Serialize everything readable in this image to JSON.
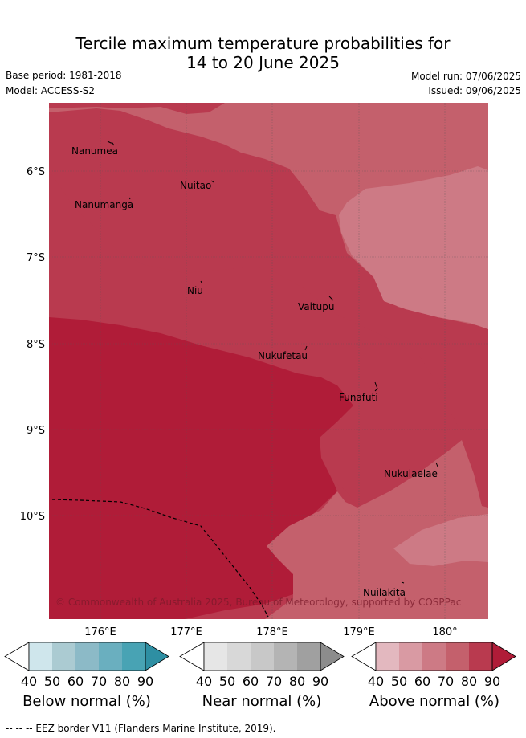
{
  "header": {
    "title_line1": "Tercile maximum temperature probabilities for",
    "title_line2": "14 to 20 June 2025",
    "base_period": "Base period: 1981-2018",
    "model": "Model: ACCESS-S2",
    "model_run": "Model run: 07/06/2025",
    "issued": "Issued: 09/06/2025"
  },
  "map": {
    "lat_labels": [
      "6°S",
      "7°S",
      "8°S",
      "9°S",
      "10°S"
    ],
    "lon_labels": [
      "176°E",
      "177°E",
      "178°E",
      "179°E",
      "180°"
    ],
    "places": [
      {
        "name": "Nanumea"
      },
      {
        "name": "Nuitao"
      },
      {
        "name": "Nanumanga"
      },
      {
        "name": "Niu"
      },
      {
        "name": "Vaitupu"
      },
      {
        "name": "Nukufetau"
      },
      {
        "name": "Funafuti"
      },
      {
        "name": "Nukulaelae"
      },
      {
        "name": "Nuilakita"
      }
    ],
    "copyright": "© Commonwealth of Australia 2025, Bureau of Meteorology, supported by COSPPac"
  },
  "colorbars": [
    {
      "label": "Below normal (%)",
      "ticks": [
        "40",
        "50",
        "60",
        "70",
        "80",
        "90"
      ],
      "colors": [
        "#cfe6ec",
        "#abcbd2",
        "#8cbac7",
        "#6aafbf",
        "#48a3b4",
        "#2e8fa3"
      ]
    },
    {
      "label": "Near normal (%)",
      "ticks": [
        "40",
        "50",
        "60",
        "70",
        "80",
        "90"
      ],
      "colors": [
        "#e6e6e6",
        "#d8d8d8",
        "#c8c8c8",
        "#b4b4b4",
        "#a0a0a0",
        "#8c8c8c"
      ]
    },
    {
      "label": "Above normal (%)",
      "ticks": [
        "40",
        "50",
        "60",
        "70",
        "80",
        "90"
      ],
      "colors": [
        "#e3b8bf",
        "#d99aa3",
        "#cd7a85",
        "#c4606c",
        "#b93a4f",
        "#b01c38"
      ]
    }
  ],
  "footer": {
    "eez_legend": "-- -- -- EEZ border V11 (Flanders Marine Institute, 2019)."
  }
}
